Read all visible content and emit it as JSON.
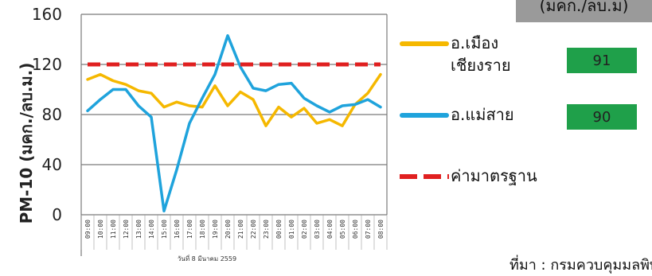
{
  "chart_data": {
    "type": "line",
    "ylabel": "PM-10 (มคก./ลบ.ม.)",
    "ylim": [
      0,
      160
    ],
    "yticks": [
      0,
      40,
      80,
      120,
      160
    ],
    "grid": true,
    "categories": [
      "09:00",
      "10:00",
      "11:00",
      "12:00",
      "13:00",
      "14:00",
      "15:00",
      "16:00",
      "17:00",
      "18:00",
      "19:00",
      "20:00",
      "21:00",
      "22:00",
      "23:00",
      "00:00",
      "01:00",
      "02:00",
      "03:00",
      "04:00",
      "05:00",
      "06:00",
      "07:00",
      "08:00"
    ],
    "date_label": "วันที่ 8 มีนาคม 2559",
    "series": [
      {
        "name": "อ.เมือง เชียงราย",
        "color": "#f5b800",
        "values": [
          108,
          112,
          107,
          104,
          99,
          97,
          86,
          90,
          87,
          86,
          103,
          87,
          98,
          92,
          71,
          86,
          78,
          85,
          73,
          76,
          71,
          88,
          97,
          112
        ]
      },
      {
        "name": "อ.แม่สาย",
        "color": "#1fa3dc",
        "values": [
          83,
          92,
          100,
          100,
          87,
          78,
          3,
          36,
          73,
          93,
          112,
          143,
          118,
          101,
          99,
          104,
          105,
          93,
          87,
          82,
          87,
          88,
          92,
          86
        ]
      },
      {
        "name": "ค่ามาตรฐาน",
        "color": "#e02020",
        "dashed": true,
        "values": [
          120,
          120,
          120,
          120,
          120,
          120,
          120,
          120,
          120,
          120,
          120,
          120,
          120,
          120,
          120,
          120,
          120,
          120,
          120,
          120,
          120,
          120,
          120,
          120
        ]
      }
    ]
  },
  "legend": {
    "muang_label_line1": "อ.เมือง",
    "muang_label_line2": "เชียงราย",
    "maesai_label": "อ.แม่สาย",
    "standard_label": "ค่ามาตรฐาน"
  },
  "values": {
    "muang": "91",
    "maesai": "90"
  },
  "unit_box": "(มคก./ลบ.ม)",
  "source": "ที่มา : กรมควบคุมมลพิษ"
}
